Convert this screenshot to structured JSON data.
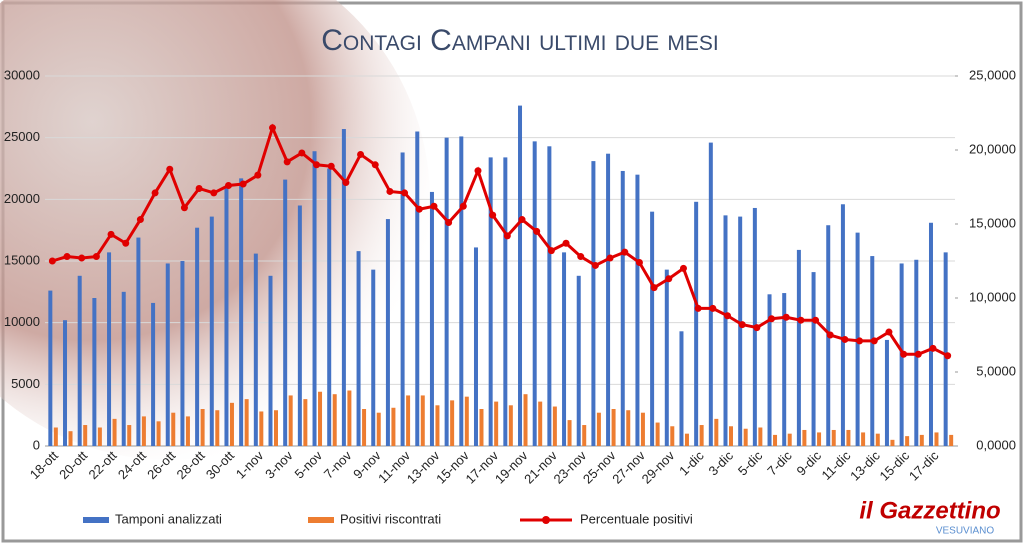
{
  "chart_data": {
    "type": "bar_line",
    "title": "Contagi Campani ultimi due mesi",
    "logo": {
      "text": "il Gazzettino",
      "subtitle": "VESUVIANO"
    },
    "categories": [
      "18-ott",
      null,
      "20-ott",
      null,
      "22-ott",
      null,
      "24-ott",
      null,
      "26-ott",
      null,
      "28-ott",
      null,
      "30-ott",
      null,
      "1-nov",
      null,
      "3-nov",
      null,
      "5-nov",
      null,
      "7-nov",
      null,
      "9-nov",
      null,
      "11-nov",
      null,
      "13-nov",
      null,
      "15-nov",
      null,
      "17-nov",
      null,
      "19-nov",
      null,
      "21-nov",
      null,
      "23-nov",
      null,
      "25-nov",
      null,
      "27-nov",
      null,
      "29-nov",
      null,
      "1-dic",
      null,
      "3-dic",
      null,
      "5-dic",
      null,
      "7-dic",
      null,
      "9-dic",
      null,
      "11-dic",
      null,
      "13-dic",
      null,
      "15-dic",
      null,
      "17-dic",
      null
    ],
    "series": [
      {
        "name": "Tamponi analizzati",
        "type": "bar",
        "color": "#4472c4",
        "values": [
          12600,
          10200,
          13800,
          12000,
          15700,
          12500,
          16900,
          11600,
          14800,
          15000,
          17700,
          18600,
          20900,
          21700,
          15600,
          13800,
          21600,
          19500,
          23900,
          22500,
          25700,
          15800,
          14300,
          18400,
          23800,
          25500,
          20600,
          25000,
          25100,
          16100,
          23400,
          23400,
          27600,
          24700,
          24300,
          15700,
          13800,
          23100,
          23700,
          22300,
          22000,
          19000,
          14300,
          9300,
          19800,
          24600,
          18700,
          18600,
          19300,
          12300,
          12400,
          15900,
          14100,
          17900,
          19600,
          17300,
          15400,
          8600,
          14800,
          15100,
          18100,
          15700
        ]
      },
      {
        "name": "Positivi riscontrati",
        "type": "bar",
        "color": "#ed7d31",
        "values": [
          1500,
          1200,
          1700,
          1500,
          2200,
          1700,
          2400,
          2000,
          2700,
          2400,
          3000,
          2900,
          3500,
          3800,
          2800,
          2900,
          4100,
          3800,
          4400,
          4200,
          4500,
          3000,
          2700,
          3100,
          4100,
          4100,
          3300,
          3700,
          4000,
          3000,
          3600,
          3300,
          4200,
          3600,
          3200,
          2100,
          1700,
          2700,
          3000,
          2900,
          2700,
          1900,
          1600,
          1000,
          1700,
          2200,
          1600,
          1400,
          1500,
          900,
          1000,
          1300,
          1100,
          1300,
          1300,
          1100,
          1000,
          500,
          800,
          900,
          1100,
          900
        ]
      },
      {
        "name": "Percentuale positivi",
        "type": "line",
        "axis": "y2",
        "color": "#e00000",
        "values": [
          12.5,
          12.8,
          12.7,
          12.8,
          14.3,
          13.7,
          15.3,
          17.1,
          18.7,
          16.1,
          17.4,
          17.1,
          17.6,
          17.7,
          18.3,
          21.5,
          19.2,
          19.8,
          19.0,
          18.9,
          17.8,
          19.7,
          19.0,
          17.2,
          17.1,
          16.0,
          16.2,
          15.1,
          16.2,
          18.6,
          15.6,
          14.2,
          15.3,
          14.5,
          13.2,
          13.7,
          12.8,
          12.2,
          12.7,
          13.1,
          12.4,
          10.7,
          11.3,
          12.0,
          9.3,
          9.3,
          8.8,
          8.2,
          8.0,
          8.6,
          8.7,
          8.5,
          8.5,
          7.5,
          7.2,
          7.1,
          7.1,
          7.7,
          6.2,
          6.2,
          6.6,
          6.1
        ]
      }
    ],
    "ylim": [
      0,
      30000
    ],
    "yticks": [
      0,
      5000,
      10000,
      15000,
      20000,
      25000,
      30000
    ],
    "y2lim": [
      0,
      25
    ],
    "y2ticks": [
      {
        "value": 0,
        "label": "0,0000"
      },
      {
        "value": 5,
        "label": "5,0000"
      },
      {
        "value": 10,
        "label": "10,0000"
      },
      {
        "value": 15,
        "label": "15,0000"
      },
      {
        "value": 20,
        "label": "20,0000"
      },
      {
        "value": 25,
        "label": "25,0000"
      }
    ],
    "grid": true,
    "legend": "bottom"
  }
}
